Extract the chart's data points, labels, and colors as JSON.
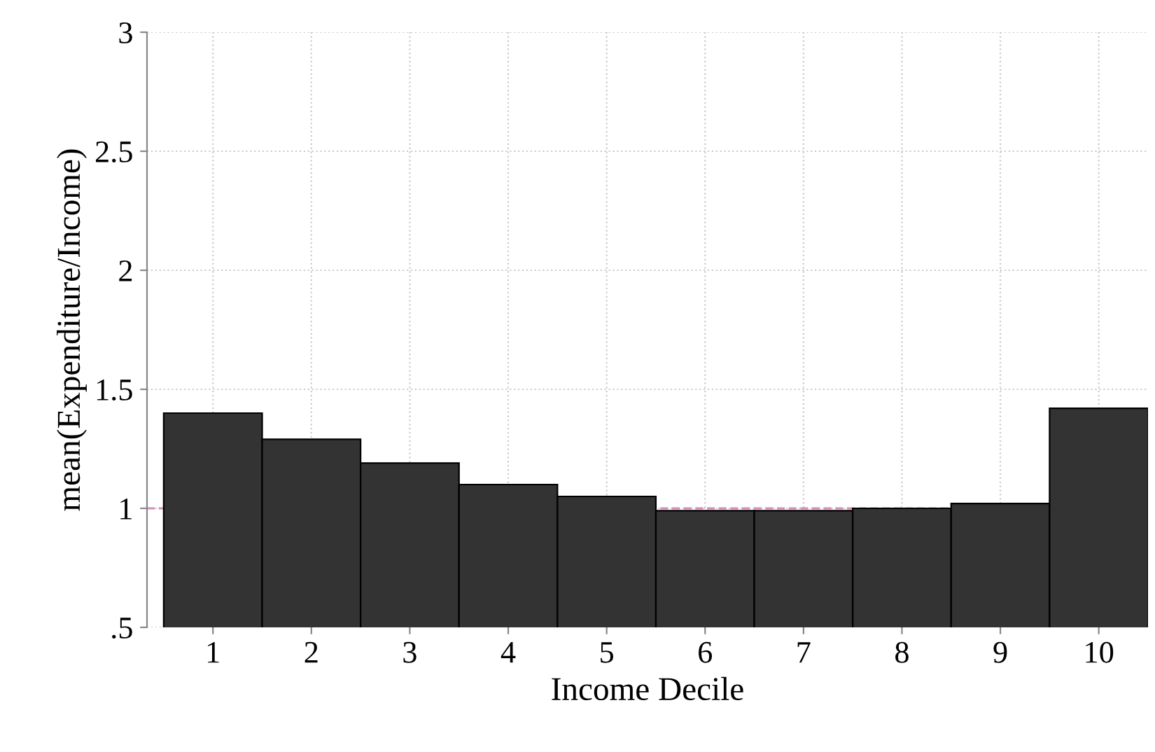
{
  "chart_data": {
    "type": "bar",
    "xlabel": "Income Decile",
    "ylabel": "mean(Expenditure/Income)",
    "categories": [
      "1",
      "2",
      "3",
      "4",
      "5",
      "6",
      "7",
      "8",
      "9",
      "10"
    ],
    "values": [
      1.4,
      1.29,
      1.19,
      1.1,
      1.05,
      0.99,
      0.99,
      1.0,
      1.02,
      1.42
    ],
    "color": "#333333",
    "ylim": [
      0.5,
      3
    ],
    "yticks": [
      {
        "value": 0.5,
        "label": ".5"
      },
      1,
      1.5,
      2,
      2.5,
      3
    ],
    "grid": true,
    "ref_lines": [
      {
        "axis": "y",
        "value": 1,
        "color": "#d48bb8",
        "line_style": "dashed"
      }
    ]
  }
}
